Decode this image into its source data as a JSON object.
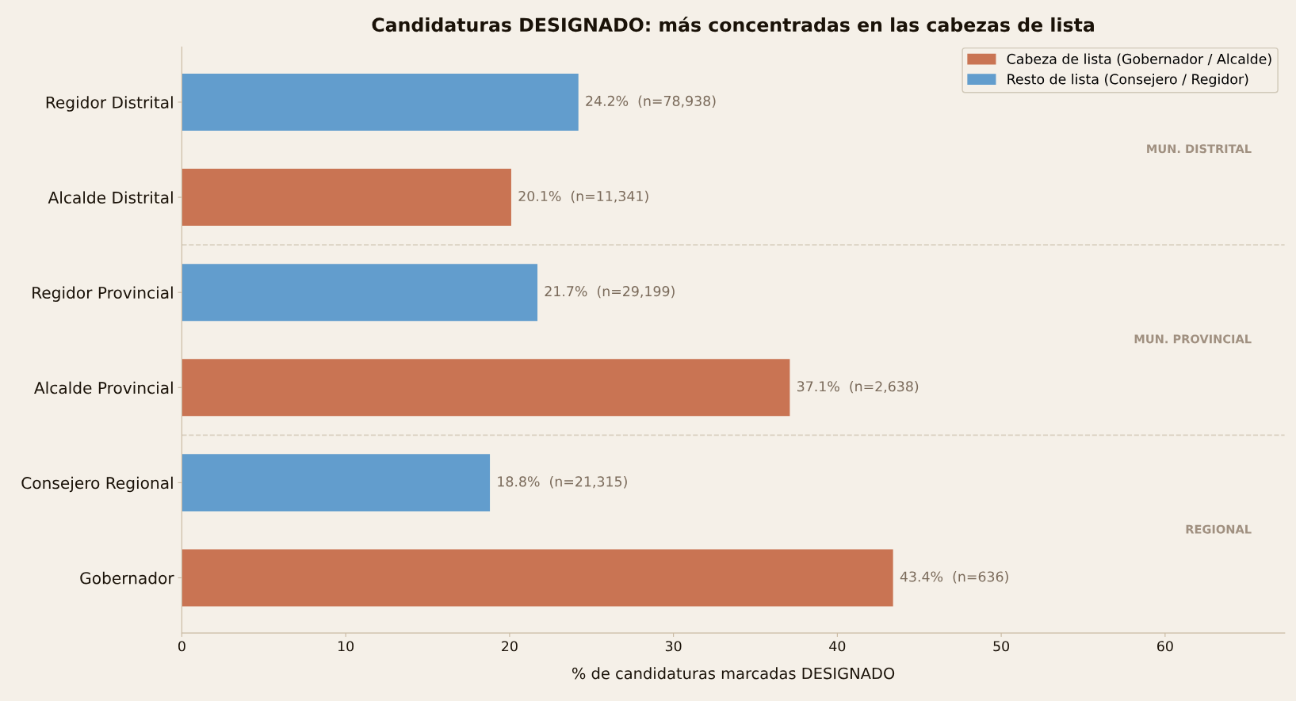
{
  "chart_data": {
    "type": "bar",
    "orientation": "horizontal",
    "title": "Candidaturas DESIGNADO: más concentradas en las cabezas de lista",
    "xlabel": "% de candidaturas marcadas DESIGNADO",
    "categories": [
      "Regidor Distrital",
      "Alcalde Distrital",
      "Regidor Provincial",
      "Alcalde Provincial",
      "Consejero Regional",
      "Gobernador"
    ],
    "series": [
      {
        "name": "Cabeza de lista (Gobernador / Alcalde)",
        "color": "#c97453",
        "values": [
          null,
          20.1,
          null,
          37.1,
          null,
          43.4
        ],
        "value_labels": [
          null,
          "20.1%  (n=11,341)",
          null,
          "37.1%  (n=2,638)",
          null,
          "43.4%  (n=636)"
        ]
      },
      {
        "name": "Resto de lista (Consejero / Regidor)",
        "color": "#629dcd",
        "values": [
          24.2,
          null,
          21.7,
          null,
          18.8,
          null
        ],
        "value_labels": [
          "24.2%  (n=78,938)",
          null,
          "21.7%  (n=29,199)",
          null,
          "18.8%  (n=21,315)",
          null
        ]
      }
    ],
    "xlim": [
      0,
      67.3
    ],
    "xticks": [
      0,
      10,
      20,
      30,
      40,
      50,
      60
    ],
    "annotations": [
      "MUN. DISTRITAL",
      "MUN. PROVINCIAL",
      "REGIONAL"
    ],
    "legend": "top right",
    "grid": false
  }
}
